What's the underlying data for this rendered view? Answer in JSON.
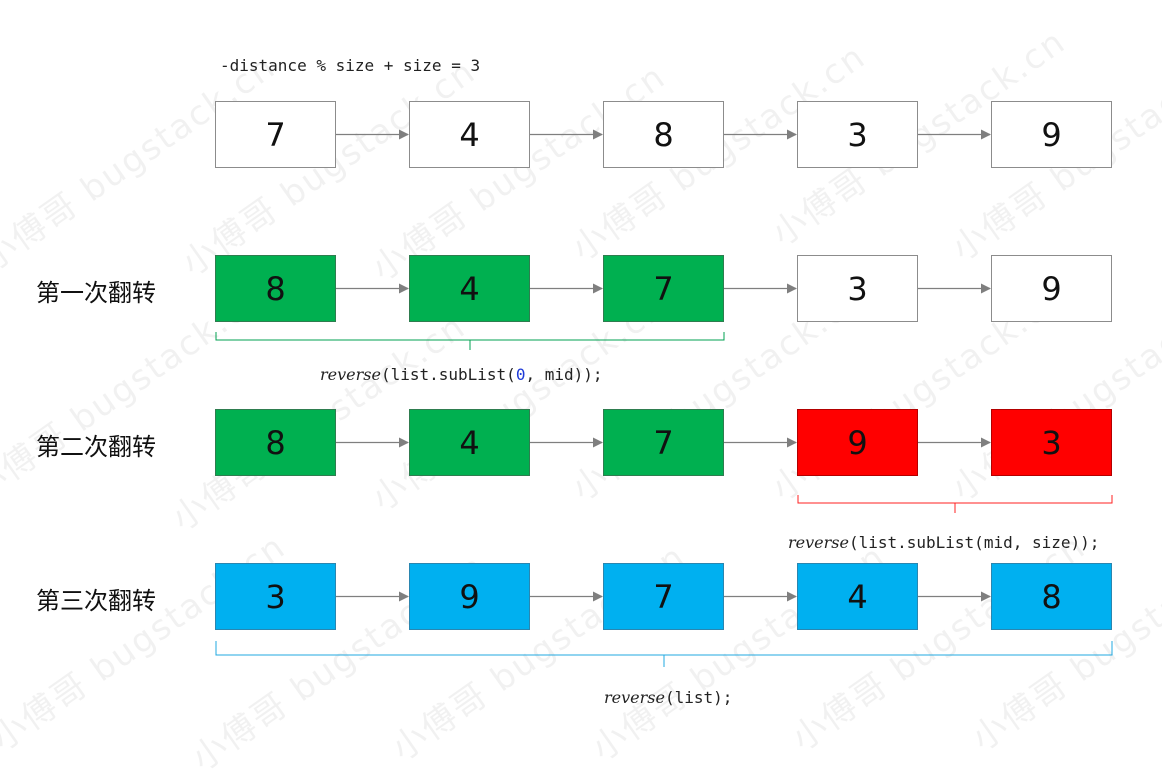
{
  "watermark": "小傅哥 bugstack.cn",
  "formula": "-distance % size + size = 3",
  "rows": [
    {
      "label": "",
      "nodes": [
        {
          "value": "7",
          "color": "white"
        },
        {
          "value": "4",
          "color": "white"
        },
        {
          "value": "8",
          "color": "white"
        },
        {
          "value": "3",
          "color": "white"
        },
        {
          "value": "9",
          "color": "white"
        }
      ]
    },
    {
      "label": "第一次翻转",
      "nodes": [
        {
          "value": "8",
          "color": "green"
        },
        {
          "value": "4",
          "color": "green"
        },
        {
          "value": "7",
          "color": "green"
        },
        {
          "value": "3",
          "color": "white"
        },
        {
          "value": "9",
          "color": "white"
        }
      ]
    },
    {
      "label": "第二次翻转",
      "nodes": [
        {
          "value": "8",
          "color": "green"
        },
        {
          "value": "4",
          "color": "green"
        },
        {
          "value": "7",
          "color": "green"
        },
        {
          "value": "9",
          "color": "red"
        },
        {
          "value": "3",
          "color": "red"
        }
      ]
    },
    {
      "label": "第三次翻转",
      "nodes": [
        {
          "value": "3",
          "color": "blue"
        },
        {
          "value": "9",
          "color": "blue"
        },
        {
          "value": "7",
          "color": "blue"
        },
        {
          "value": "4",
          "color": "blue"
        },
        {
          "value": "8",
          "color": "blue"
        }
      ]
    }
  ],
  "annotations": [
    {
      "fn": "reverse",
      "open": "(list.subList(",
      "num": "0",
      "rest": ", mid));",
      "color": "#00a050"
    },
    {
      "fn": "reverse",
      "open": "(list.subList(mid, size));",
      "num": "",
      "rest": "",
      "color": "#ff2020"
    },
    {
      "fn": "reverse",
      "open": "(list);",
      "num": "",
      "rest": "",
      "color": "#20a8e0"
    }
  ],
  "colors": {
    "green": "#00b050",
    "red": "#ff0000",
    "blue": "#00b0f0",
    "white": "#ffffff",
    "arrow": "#7f7f7f"
  }
}
